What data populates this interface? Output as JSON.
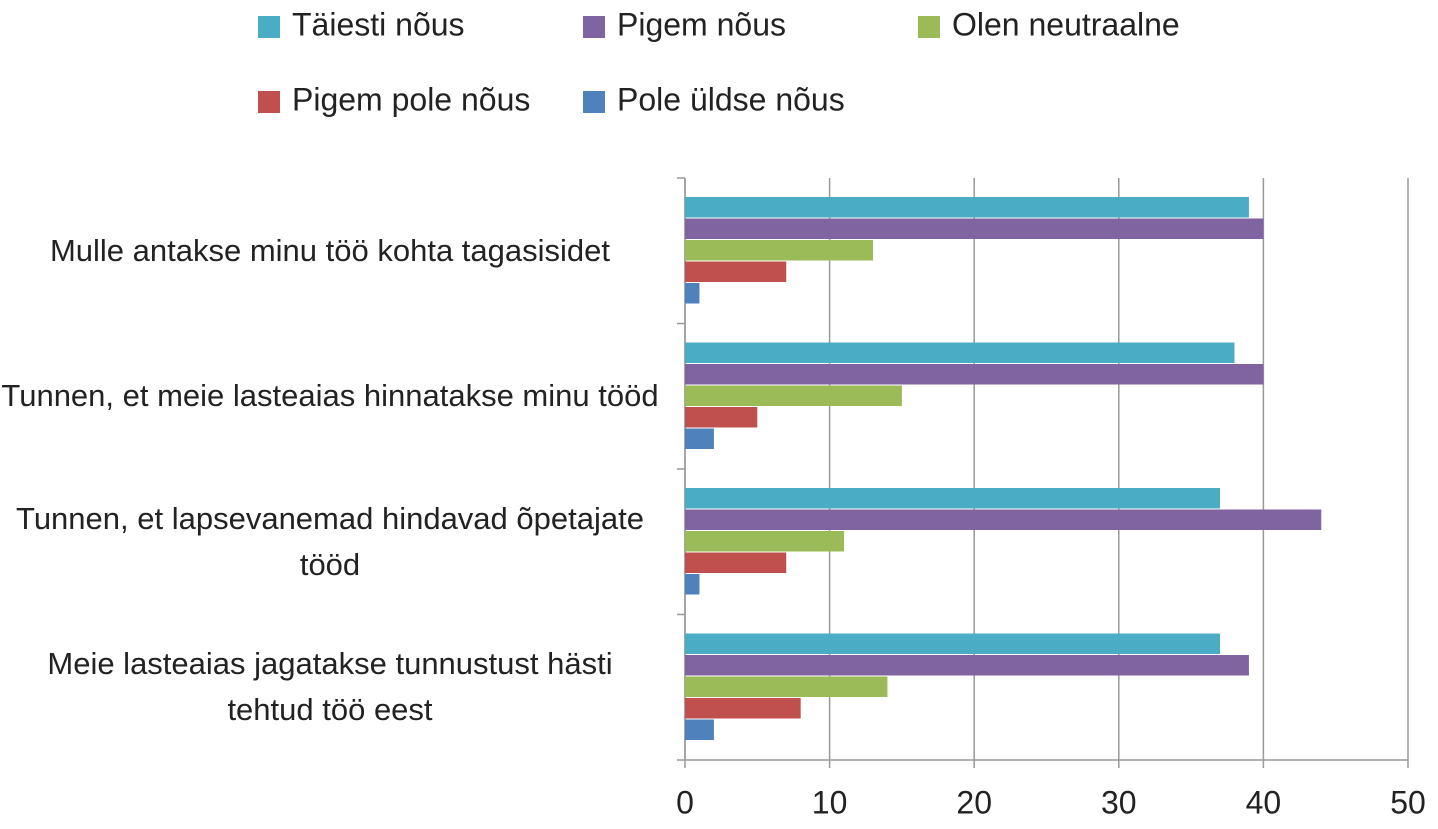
{
  "chart_data": {
    "type": "hbar",
    "categories": [
      "Mulle antakse minu töö kohta tagasisidet",
      "Tunnen, et meie lasteaias hinnatakse minu tööd",
      "Tunnen, et lapsevanemad hindavad õpetajate tööd",
      "Meie lasteaias jagatakse tunnustust hästi tehtud töö eest"
    ],
    "series": [
      {
        "name": "Täiesti nõus",
        "color": "#4bacc6",
        "values": [
          39,
          38,
          37,
          37
        ]
      },
      {
        "name": "Pigem nõus",
        "color": "#8064a2",
        "values": [
          40,
          40,
          44,
          39
        ]
      },
      {
        "name": "Olen neutraalne",
        "color": "#9bbb59",
        "values": [
          13,
          15,
          11,
          14
        ]
      },
      {
        "name": "Pigem pole nõus",
        "color": "#c0504d",
        "values": [
          7,
          5,
          7,
          8
        ]
      },
      {
        "name": "Pole üldse nõus",
        "color": "#4f81bd",
        "values": [
          1,
          2,
          1,
          2
        ]
      }
    ],
    "xlim": [
      0,
      50
    ],
    "xticks": [
      0,
      10,
      20,
      30,
      40,
      50
    ],
    "grid": true,
    "legend": "top"
  }
}
